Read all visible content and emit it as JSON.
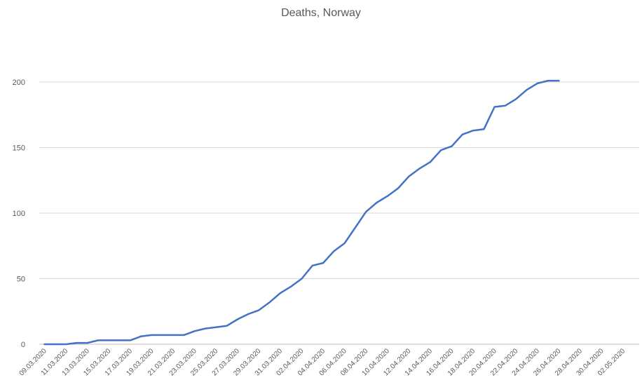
{
  "chart_data": {
    "type": "line",
    "title": "Deaths, Norway",
    "xlabel": "",
    "ylabel": "",
    "ylim": [
      0,
      200
    ],
    "yticks": [
      "0",
      "50",
      "100",
      "150",
      "200"
    ],
    "grid": true,
    "x_tick_labels": [
      "09.03.2020",
      "11.03.2020",
      "13.03.2020",
      "15.03.2020",
      "17.03.2020",
      "19.03.2020",
      "21.03.2020",
      "23.03.2020",
      "25.03.2020",
      "27.03.2020",
      "29.03.2020",
      "31.03.2020",
      "02.04.2020",
      "04.04.2020",
      "06.04.2020",
      "08.04.2020",
      "10.04.2020",
      "12.04.2020",
      "14.04.2020",
      "16.04.2020",
      "18.04.2020",
      "20.04.2020",
      "22.04.2020",
      "24.04.2020",
      "26.04.2020",
      "28.04.2020",
      "30.04.2020",
      "02.05.2020"
    ],
    "series_color": "#4472C4",
    "series": [
      {
        "x": [
          "09.03.2020",
          "10.03.2020",
          "11.03.2020",
          "12.03.2020",
          "13.03.2020",
          "14.03.2020",
          "15.03.2020",
          "16.03.2020",
          "17.03.2020",
          "18.03.2020",
          "19.03.2020",
          "20.03.2020",
          "21.03.2020",
          "22.03.2020",
          "23.03.2020",
          "24.03.2020",
          "25.03.2020",
          "26.03.2020",
          "27.03.2020",
          "28.03.2020",
          "29.03.2020",
          "30.03.2020",
          "31.03.2020",
          "01.04.2020",
          "02.04.2020",
          "03.04.2020",
          "04.04.2020",
          "05.04.2020",
          "06.04.2020",
          "07.04.2020",
          "08.04.2020",
          "09.04.2020",
          "10.04.2020",
          "11.04.2020",
          "12.04.2020",
          "13.04.2020",
          "14.04.2020",
          "15.04.2020",
          "16.04.2020",
          "17.04.2020",
          "18.04.2020",
          "19.04.2020",
          "20.04.2020",
          "21.04.2020",
          "22.04.2020",
          "23.04.2020",
          "24.04.2020",
          "25.04.2020",
          "26.04.2020"
        ],
        "values": [
          0,
          0,
          0,
          1,
          1,
          3,
          3,
          3,
          3,
          6,
          7,
          7,
          7,
          7,
          10,
          12,
          13,
          14,
          19,
          23,
          26,
          32,
          39,
          44,
          50,
          60,
          62,
          71,
          77,
          89,
          101,
          108,
          113,
          119,
          128,
          134,
          139,
          148,
          151,
          160,
          163,
          164,
          181,
          182,
          187,
          194,
          199,
          201,
          201
        ]
      }
    ]
  }
}
